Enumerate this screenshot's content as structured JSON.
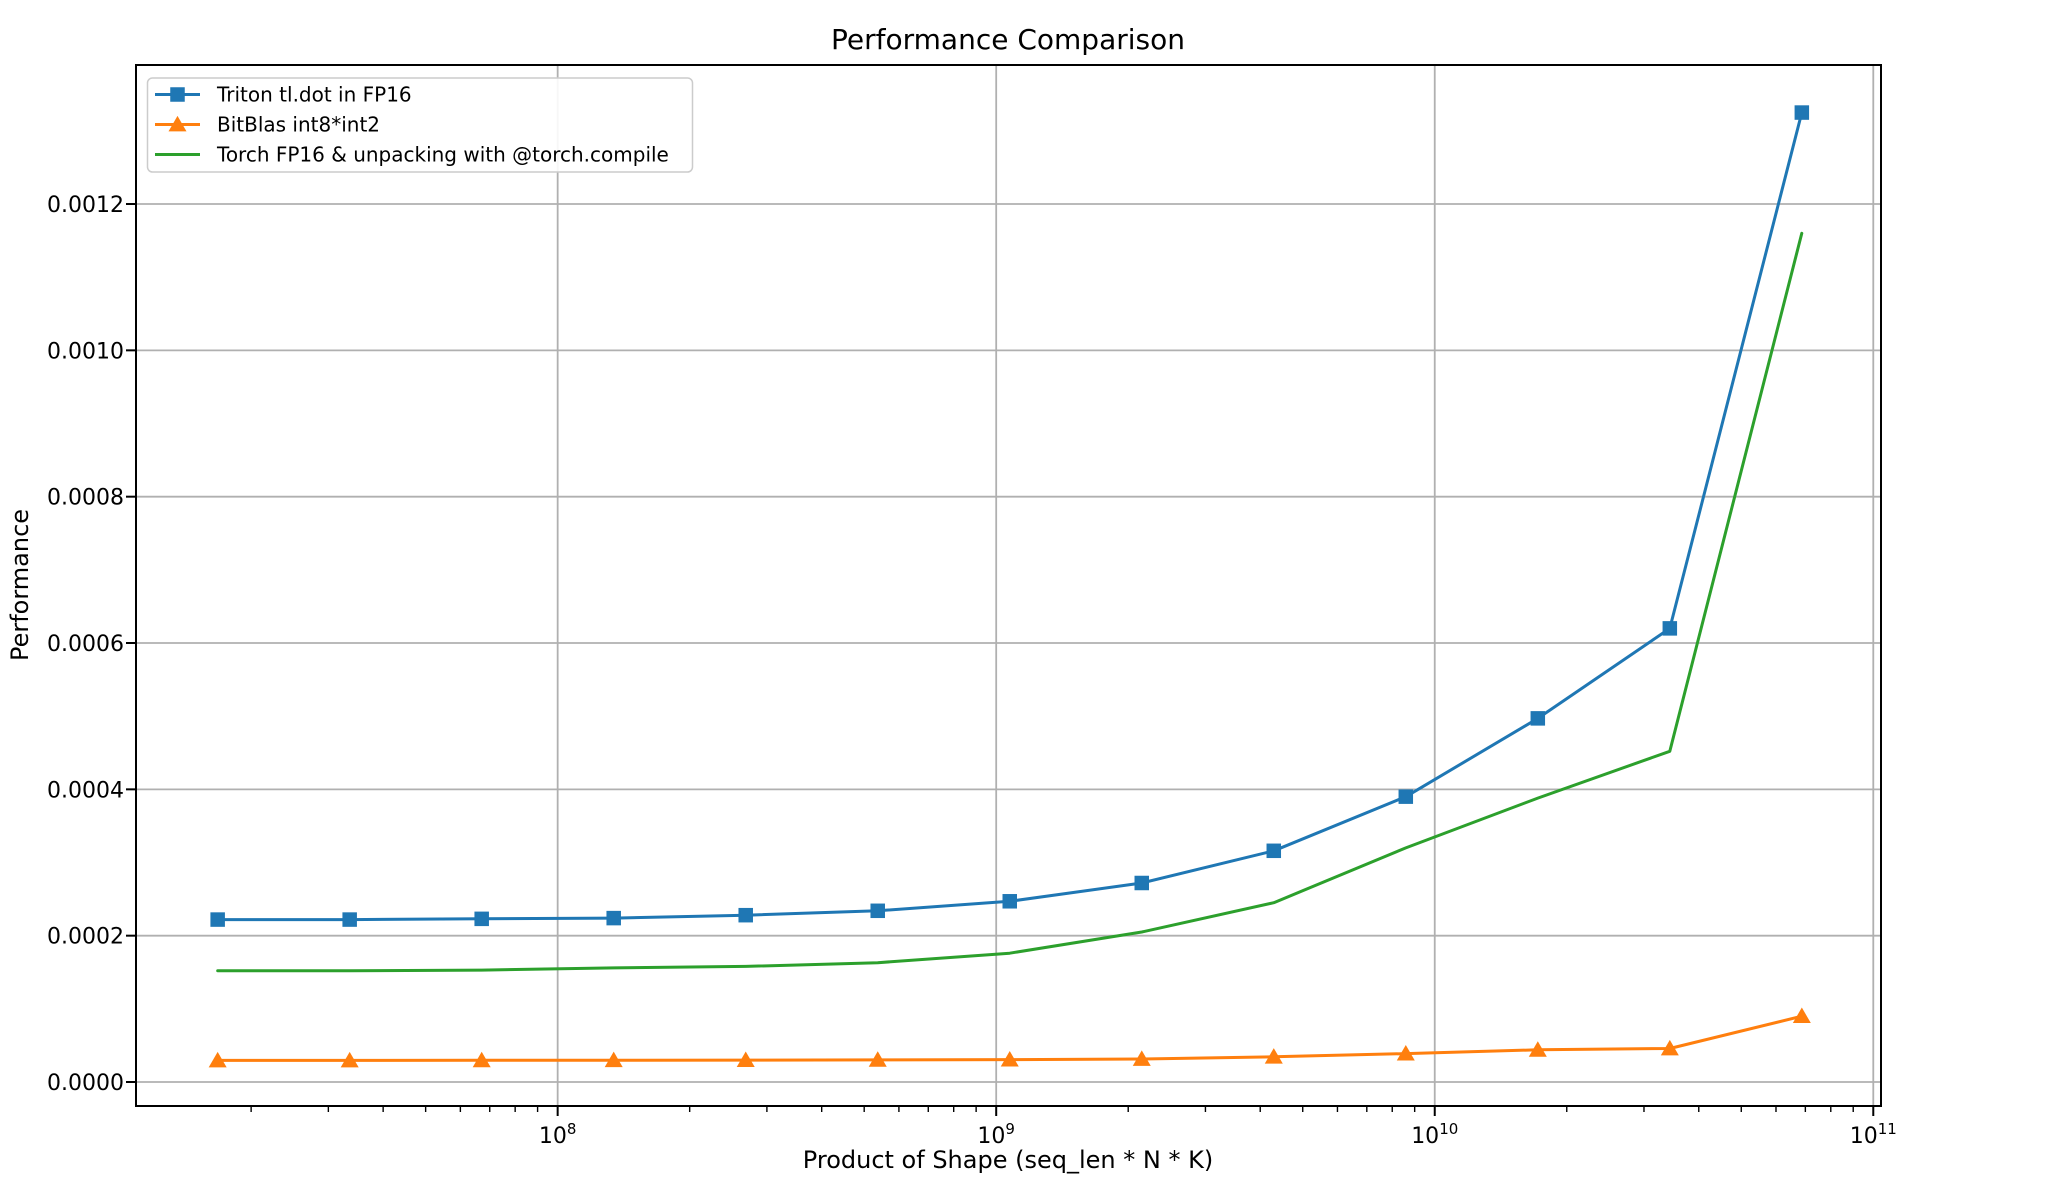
{
  "chart_data": {
    "type": "line",
    "title": "Performance Comparison",
    "xlabel": "Product of Shape (seq_len * N * K)",
    "ylabel": "Performance",
    "x_scale": "log10",
    "y_scale": "linear",
    "xlim_log10": [
      7.0385,
      11.0176
    ],
    "ylim": [
      -3.28e-05,
      0.00139
    ],
    "grid": true,
    "legend_position": "upper-left",
    "colors": {
      "background": "#ffffff",
      "grid": "#b0b0b0",
      "spine": "#000000",
      "legend_border": "#cccccc"
    },
    "x_ticks": [
      {
        "value": 100000000,
        "base": "10",
        "exp": "8"
      },
      {
        "value": 1000000000,
        "base": "10",
        "exp": "9"
      },
      {
        "value": 10000000000,
        "base": "10",
        "exp": "10"
      },
      {
        "value": 100000000000,
        "base": "10",
        "exp": "11"
      }
    ],
    "y_ticks": [
      {
        "value": 0.0,
        "label": "0.0000"
      },
      {
        "value": 0.0002,
        "label": "0.0002"
      },
      {
        "value": 0.0004,
        "label": "0.0004"
      },
      {
        "value": 0.0006,
        "label": "0.0006"
      },
      {
        "value": 0.0008,
        "label": "0.0008"
      },
      {
        "value": 0.001,
        "label": "0.0010"
      },
      {
        "value": 0.0012,
        "label": "0.0012"
      }
    ],
    "x": [
      16777216,
      33554432,
      67108864,
      134217728,
      268435456,
      536870912,
      1073741824,
      2147483648,
      4294967296,
      8589934592,
      17179869184,
      34359738368,
      68719476736
    ],
    "series": [
      {
        "name": "Triton tl.dot in FP16",
        "color": "#1f77b4",
        "marker": "square",
        "values": [
          0.000222,
          0.000222,
          0.000223,
          0.000224,
          0.000228,
          0.000234,
          0.000247,
          0.000272,
          0.000316,
          0.00039,
          0.000497,
          0.00062,
          0.001325
        ]
      },
      {
        "name": "BitBlas int8*int2",
        "color": "#ff7f0e",
        "marker": "triangle-up",
        "values": [
          2.95e-05,
          2.95e-05,
          2.96e-05,
          2.97e-05,
          2.99e-05,
          3.02e-05,
          3.06e-05,
          3.15e-05,
          3.45e-05,
          3.88e-05,
          4.4e-05,
          4.58e-05,
          9e-05
        ]
      },
      {
        "name": "Torch FP16 & unpacking with @torch.compile",
        "color": "#2ca02c",
        "marker": "none",
        "values": [
          0.000152,
          0.000152,
          0.000153,
          0.000156,
          0.000158,
          0.000163,
          0.000176,
          0.000205,
          0.000245,
          0.00032,
          0.000388,
          0.000452,
          0.00116
        ]
      }
    ]
  }
}
